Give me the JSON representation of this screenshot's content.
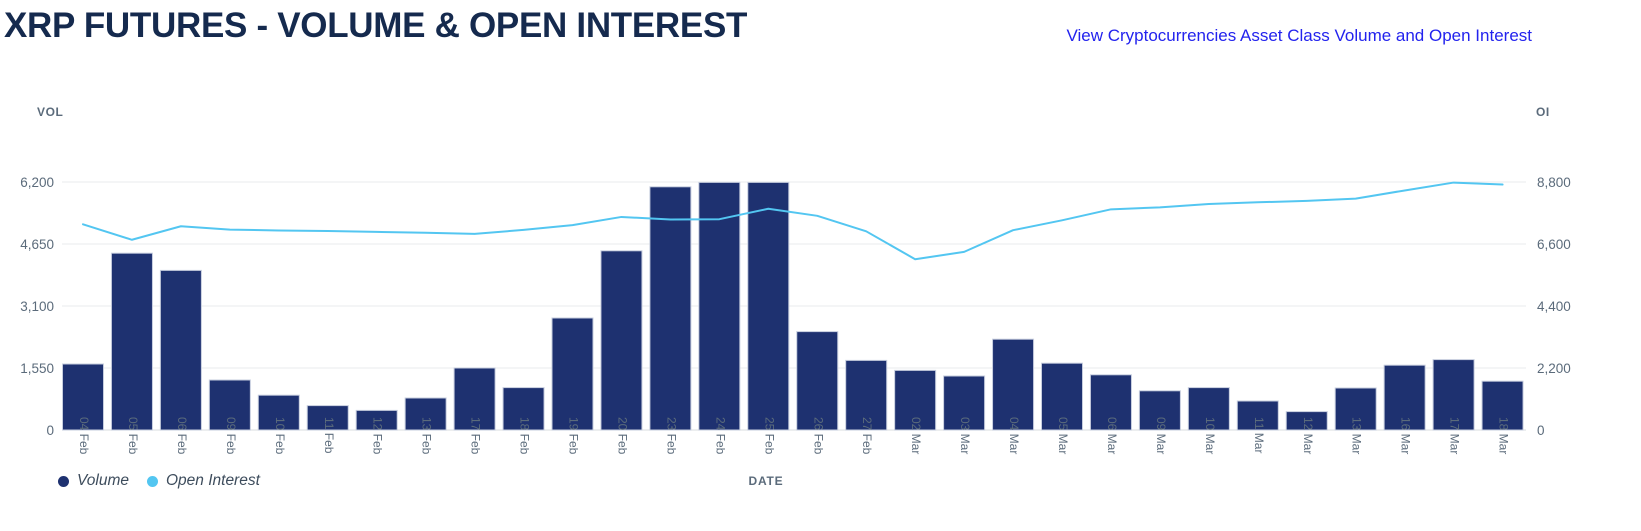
{
  "header": {
    "title": "XRP FUTURES - VOLUME & OPEN INTEREST",
    "link_text": "View Cryptocurrencies Asset Class Volume and Open Interest"
  },
  "legend": {
    "volume_label": "Volume",
    "open_interest_label": "Open Interest"
  },
  "colors": {
    "bar": "#1e3170",
    "bar_border": "#c6cdde",
    "line": "#53c6f1",
    "title_text": "#152a4e",
    "link": "#2323ee",
    "axis_text": "#5b6b7b",
    "legend_text": "#3d4c5c",
    "gridline": "#eaebed",
    "baseline": "#d9dcdf"
  },
  "chart_data": {
    "type": "combo-bar-line",
    "title": "XRP FUTURES - VOLUME & OPEN INTEREST",
    "categories": [
      "04 Feb",
      "05 Feb",
      "06 Feb",
      "09 Feb",
      "10 Feb",
      "11 Feb",
      "12 Feb",
      "13 Feb",
      "17 Feb",
      "18 Feb",
      "19 Feb",
      "20 Feb",
      "23 Feb",
      "24 Feb",
      "25 Feb",
      "26 Feb",
      "27 Feb",
      "02 Mar",
      "03 Mar",
      "04 Mar",
      "05 Mar",
      "06 Mar",
      "09 Mar",
      "10 Mar",
      "11 Mar",
      "12 Mar",
      "13 Mar",
      "16 Mar",
      "17 Mar",
      "18 Mar"
    ],
    "series": [
      {
        "name": "Volume",
        "type": "bar",
        "axis": "left",
        "values": [
          1650,
          4420,
          3990,
          1250,
          870,
          610,
          490,
          800,
          1550,
          1060,
          2800,
          4480,
          6080,
          6190,
          6190,
          2460,
          1740,
          1490,
          1350,
          2270,
          1670,
          1380,
          980,
          1060,
          725,
          460,
          1050,
          1620,
          1760,
          1220
        ]
      },
      {
        "name": "Open Interest",
        "type": "line",
        "axis": "right",
        "values": [
          7300,
          6750,
          7230,
          7110,
          7080,
          7060,
          7030,
          7000,
          6960,
          7100,
          7270,
          7560,
          7470,
          7480,
          7850,
          7600,
          7050,
          6060,
          6320,
          7090,
          7440,
          7830,
          7900,
          8020,
          8080,
          8130,
          8210,
          8500,
          8780,
          8710
        ]
      }
    ],
    "left_axis": {
      "label": "VOL",
      "range": [
        0,
        6200
      ],
      "tick_values": [
        0,
        1550,
        3100,
        4650,
        6200
      ],
      "tick_labels": [
        "0",
        "1,550",
        "3,100",
        "4,650",
        "6,200"
      ]
    },
    "right_axis": {
      "label": "OI",
      "range": [
        0,
        8800
      ],
      "tick_values": [
        0,
        2200,
        4400,
        6600,
        8800
      ],
      "tick_labels": [
        "0",
        "2,200",
        "4,400",
        "6,600",
        "8,800"
      ]
    },
    "x_axis": {
      "label": "DATE"
    },
    "grid": true,
    "legend_position": "bottom-left"
  }
}
